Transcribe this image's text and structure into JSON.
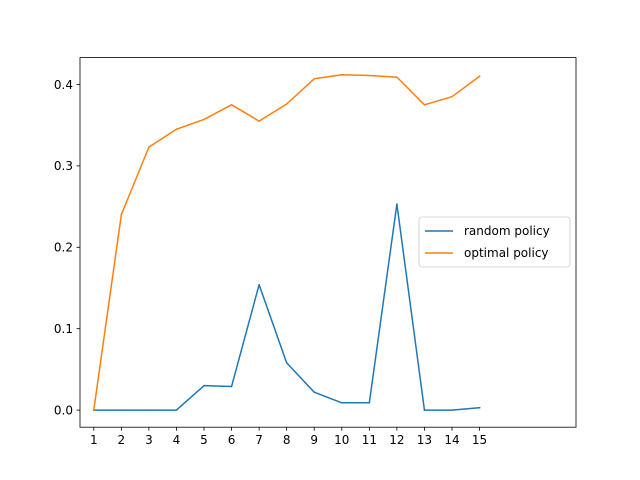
{
  "chart_data": {
    "type": "line",
    "x": [
      1,
      2,
      3,
      4,
      5,
      6,
      7,
      8,
      9,
      10,
      11,
      12,
      13,
      14,
      15
    ],
    "xlim": [
      0.5,
      18.5
    ],
    "ylim": [
      -0.021,
      0.433
    ],
    "xticks": [
      1,
      2,
      3,
      4,
      5,
      6,
      7,
      8,
      9,
      10,
      11,
      12,
      13,
      14,
      15
    ],
    "yticks": [
      0.0,
      0.1,
      0.2,
      0.3,
      0.4
    ],
    "ytick_labels": [
      "0.0",
      "0.1",
      "0.2",
      "0.3",
      "0.4"
    ],
    "grid": false,
    "legend_position": "center-right",
    "series": [
      {
        "name": "random policy",
        "color": "#1f77b4",
        "values": [
          0.0,
          0.0,
          0.0,
          0.0,
          0.03,
          0.029,
          0.154,
          0.058,
          0.022,
          0.009,
          0.009,
          0.253,
          0.0,
          0.0,
          0.003
        ]
      },
      {
        "name": "optimal policy",
        "color": "#ff7f0e",
        "values": [
          0.0,
          0.24,
          0.323,
          0.345,
          0.357,
          0.375,
          0.355,
          0.376,
          0.407,
          0.412,
          0.411,
          0.409,
          0.375,
          0.385,
          0.41
        ]
      }
    ]
  }
}
